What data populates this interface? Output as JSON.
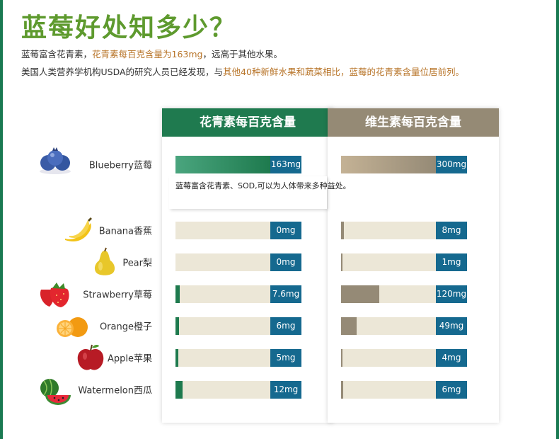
{
  "page": {
    "title": "蓝莓好处知多少？",
    "intro_line1": {
      "prefix": "蓝莓富含花青素，",
      "highlight": "花青素每百克含量为163mg",
      "suffix": "，远高于其他水果。"
    },
    "intro_line2": {
      "prefix": "美国人类营养学机构USDA的研究人员已经发现，与",
      "highlight": "其他40种新鲜水果和蔬菜相比，蓝莓的花青素含量位居前列。"
    },
    "tooltip": "蓝莓富含花青素、SOD,可以为人体带来多种益处。"
  },
  "chart_data": {
    "type": "bar",
    "orientation": "horizontal",
    "categories": [
      "Blueberry蓝莓",
      "Banana香蕉",
      "Pear梨",
      "Strawberry草莓",
      "Orange橙子",
      "Apple苹果",
      "Watermelon西瓜"
    ],
    "fruit_icons": [
      "blueberry-icon",
      "banana-icon",
      "pear-icon",
      "strawberry-icon",
      "orange-icon",
      "apple-icon",
      "watermelon-icon"
    ],
    "series": [
      {
        "name": "花青素每百克含量",
        "values": [
          163,
          0,
          0,
          7.6,
          6,
          5,
          12
        ],
        "labels": [
          "163mg",
          "0mg",
          "0mg",
          "7.6mg",
          "6mg",
          "5mg",
          "12mg"
        ],
        "max": 163,
        "color": "#1e7a4e"
      },
      {
        "name": "维生素每百克含量",
        "values": [
          300,
          8,
          1,
          120,
          49,
          4,
          6
        ],
        "labels": [
          "300mg",
          "8mg",
          "1mg",
          "120mg",
          "49mg",
          "4mg",
          "6mg"
        ],
        "max": 300,
        "color": "#958a76"
      }
    ]
  }
}
